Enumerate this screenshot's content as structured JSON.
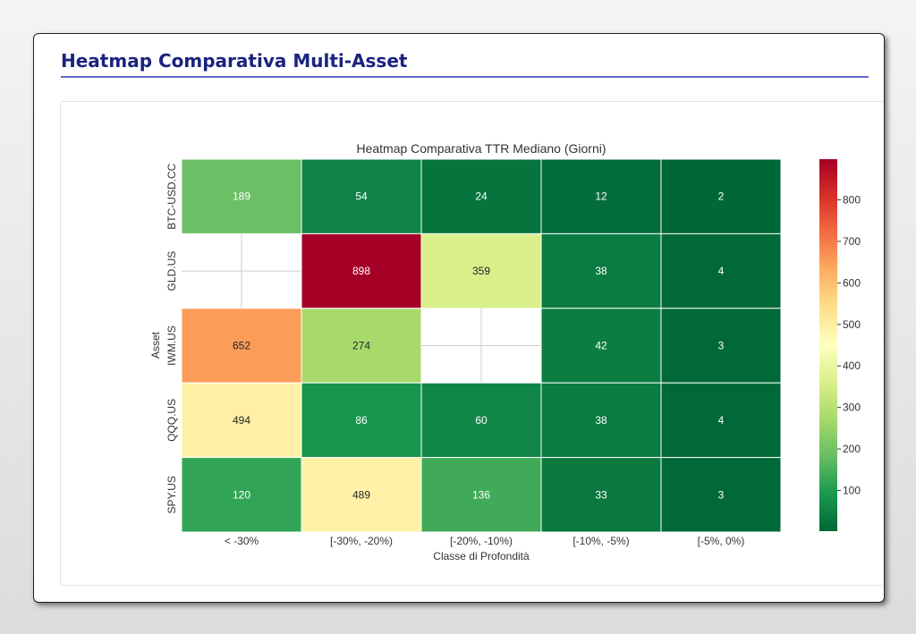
{
  "page": {
    "title": "Heatmap Comparativa Multi-Asset"
  },
  "chart_data": {
    "type": "heatmap",
    "title": "Heatmap Comparativa TTR Mediano (Giorni)",
    "xlabel": "Classe di Profondità",
    "ylabel": "Asset",
    "x_categories": [
      "< -30%",
      "[-30%, -20%)",
      "[-20%, -10%)",
      "[-10%, -5%)",
      "[-5%, 0%)"
    ],
    "y_categories": [
      "BTC-USD.CC",
      "GLD.US",
      "IWM.US",
      "QQQ.US",
      "SPY.US"
    ],
    "values": [
      [
        189,
        54,
        24,
        12,
        2
      ],
      [
        null,
        898,
        359,
        38,
        4
      ],
      [
        652,
        274,
        null,
        42,
        3
      ],
      [
        494,
        86,
        60,
        38,
        4
      ],
      [
        120,
        489,
        136,
        33,
        3
      ]
    ],
    "colormap": "RdYlGn_r",
    "vmin": 2,
    "vmax": 898,
    "colorbar_ticks": [
      100,
      200,
      300,
      400,
      500,
      600,
      700,
      800
    ]
  }
}
